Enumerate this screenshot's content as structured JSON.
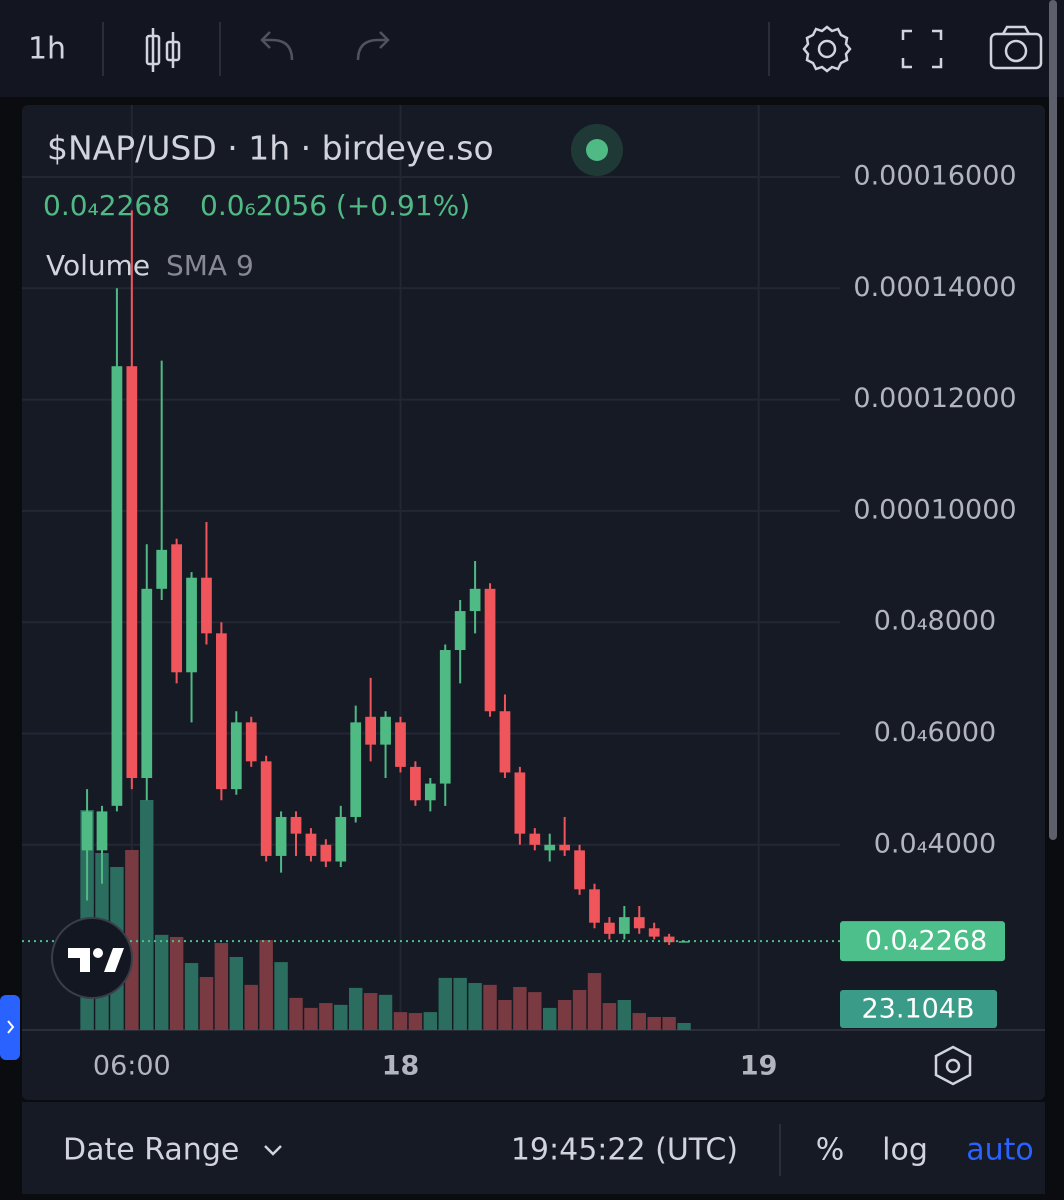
{
  "toolbar": {
    "interval": "1h"
  },
  "chart_data": {
    "type": "candlestick",
    "title": "$NAP/USD · 1h · birdeye.so",
    "legend_values": [
      "0.0₄2268",
      "0.0₆2056 (+0.91%)"
    ],
    "volume_label": "Volume",
    "volume_indicator": "SMA 9",
    "x": [
      0,
      1,
      2,
      3,
      4,
      5,
      6,
      7,
      8,
      9,
      10,
      11,
      12,
      13,
      14,
      15,
      16,
      17,
      18,
      19,
      20,
      21,
      22,
      23,
      24,
      25,
      26,
      27,
      28,
      29,
      30,
      31,
      32,
      33,
      34,
      35,
      36,
      37,
      38,
      39,
      40
    ],
    "xlim": [
      -4.36,
      50.45
    ],
    "xticks": [
      {
        "value": 3,
        "label": "06:00"
      },
      {
        "value": 21,
        "label": "18"
      },
      {
        "value": 45,
        "label": "19"
      }
    ],
    "ylim": [
      6.72e-06,
      0.00017294
    ],
    "yticks": [
      {
        "value": 0.00016,
        "label": "0.00016000"
      },
      {
        "value": 0.00014,
        "label": "0.00014000"
      },
      {
        "value": 0.00012,
        "label": "0.00012000"
      },
      {
        "value": 0.0001,
        "label": "0.00010000"
      },
      {
        "value": 8e-05,
        "label": "0.0₄8000"
      },
      {
        "value": 6e-05,
        "label": "0.0₄6000"
      },
      {
        "value": 4e-05,
        "label": "0.0₄4000"
      }
    ],
    "grid": true,
    "up_color": "#4fba84",
    "down_color": "#f0555c",
    "open": [
      3.9e-05,
      3.9e-05,
      4.7e-05,
      0.000126,
      5.2e-05,
      8.6e-05,
      9.4e-05,
      7.1e-05,
      8.8e-05,
      7.8e-05,
      5e-05,
      6.2e-05,
      5.5e-05,
      3.8e-05,
      4.5e-05,
      4.2e-05,
      4e-05,
      3.7e-05,
      4.5e-05,
      6.3e-05,
      5.8e-05,
      6.2e-05,
      5.4e-05,
      4.8e-05,
      5.1e-05,
      7.5e-05,
      8.2e-05,
      8.6e-05,
      6.4e-05,
      5.3e-05,
      4.2e-05,
      3.9e-05,
      4e-05,
      3.9e-05,
      3.2e-05,
      2.6e-05,
      2.4e-05,
      2.7e-05,
      2.5e-05,
      2.35e-05,
      2.26e-05
    ],
    "high": [
      5e-05,
      4.7e-05,
      0.00014,
      0.000154,
      9.4e-05,
      0.000127,
      9.5e-05,
      8.9e-05,
      9.8e-05,
      8e-05,
      6.4e-05,
      6.3e-05,
      5.6e-05,
      4.6e-05,
      4.6e-05,
      4.3e-05,
      4.1e-05,
      4.7e-05,
      6.5e-05,
      7e-05,
      6.4e-05,
      6.3e-05,
      5.5e-05,
      5.2e-05,
      7.6e-05,
      8.4e-05,
      9.1e-05,
      8.7e-05,
      6.7e-05,
      5.4e-05,
      4.3e-05,
      4.2e-05,
      4.5e-05,
      4e-05,
      3.3e-05,
      2.7e-05,
      2.9e-05,
      2.9e-05,
      2.6e-05,
      2.4e-05,
      2.28e-05
    ],
    "low": [
      3e-05,
      3.3e-05,
      4.6e-05,
      5e-05,
      4.8e-05,
      8.4e-05,
      6.9e-05,
      6.2e-05,
      7.6e-05,
      4.8e-05,
      4.9e-05,
      5.4e-05,
      3.7e-05,
      3.5e-05,
      3.8e-05,
      3.7e-05,
      3.6e-05,
      3.6e-05,
      4.4e-05,
      5.5e-05,
      5.2e-05,
      5.3e-05,
      4.7e-05,
      4.6e-05,
      4.7e-05,
      6.9e-05,
      7.8e-05,
      6.3e-05,
      5.2e-05,
      4e-05,
      3.9e-05,
      3.7e-05,
      3.8e-05,
      3.1e-05,
      2.5e-05,
      2.3e-05,
      2.3e-05,
      2.4e-05,
      2.3e-05,
      2.2e-05,
      2.25e-05
    ],
    "close": [
      4.6e-05,
      4.6e-05,
      0.000126,
      5.2e-05,
      8.6e-05,
      9.3e-05,
      7.1e-05,
      8.8e-05,
      7.8e-05,
      5e-05,
      6.2e-05,
      5.5e-05,
      3.8e-05,
      4.5e-05,
      4.2e-05,
      3.8e-05,
      3.7e-05,
      4.5e-05,
      6.2e-05,
      5.8e-05,
      6.3e-05,
      5.4e-05,
      4.8e-05,
      5.1e-05,
      7.5e-05,
      8.2e-05,
      8.6e-05,
      6.4e-05,
      5.3e-05,
      4.2e-05,
      4e-05,
      4e-05,
      3.9e-05,
      3.2e-05,
      2.6e-05,
      2.4e-05,
      2.7e-05,
      2.5e-05,
      2.35e-05,
      2.25e-05,
      2.268e-05
    ],
    "volume": {
      "values": [
        726000000000,
        584000000000,
        538000000000,
        594000000000,
        759000000000,
        314000000000,
        307000000000,
        221000000000,
        175000000000,
        287000000000,
        241000000000,
        149000000000,
        297000000000,
        224000000000,
        106000000000,
        73000000000,
        89000000000,
        83000000000,
        139000000000,
        122000000000,
        116000000000,
        59000000000,
        56000000000,
        59000000000,
        172000000000,
        172000000000,
        155000000000,
        149000000000,
        99000000000,
        142000000000,
        125000000000,
        73000000000,
        99000000000,
        132000000000,
        188000000000,
        89000000000,
        99000000000,
        56000000000,
        43000000000,
        43000000000,
        23104000000
      ],
      "up_color": "#2b6e5f",
      "down_color": "#7a3a41"
    },
    "price_tag_label": "0.0₄2268",
    "price_tag_color": "#4cbf8a",
    "volume_tag_label": "23.104B",
    "volume_tag_color": "#3a9c88"
  },
  "footer": {
    "date_range": "Date Range",
    "time": "19:45:22 (UTC)",
    "percent": "%",
    "log": "log",
    "auto": "auto"
  }
}
